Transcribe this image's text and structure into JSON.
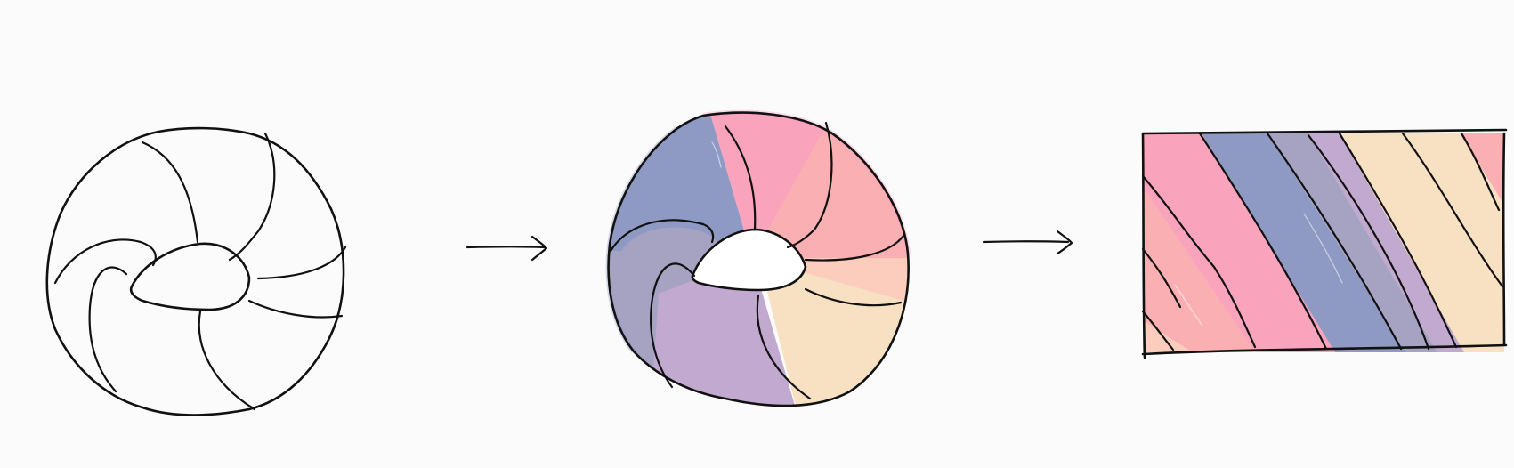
{
  "diagram": {
    "panels": [
      {
        "name": "outline-torus",
        "fill": "none"
      },
      {
        "name": "colored-torus",
        "fill": "segments"
      },
      {
        "name": "unwrapped-strip",
        "fill": "diagonal-bands"
      }
    ],
    "arrows": [
      "arrow-to-colored-torus",
      "arrow-to-unwrapped-strip"
    ],
    "colors": {
      "background": "#fbfbfb",
      "ink": "#111111",
      "pink": "#f9a3bd",
      "blue": "#8e9ac4",
      "gray_violet": "#a6a3c2",
      "lavender": "#c2a9cf",
      "peach": "#f8e0c2",
      "salmon": "#f9bbb0",
      "coral": "#fab0b2",
      "apricot": "#fcccbd"
    }
  }
}
